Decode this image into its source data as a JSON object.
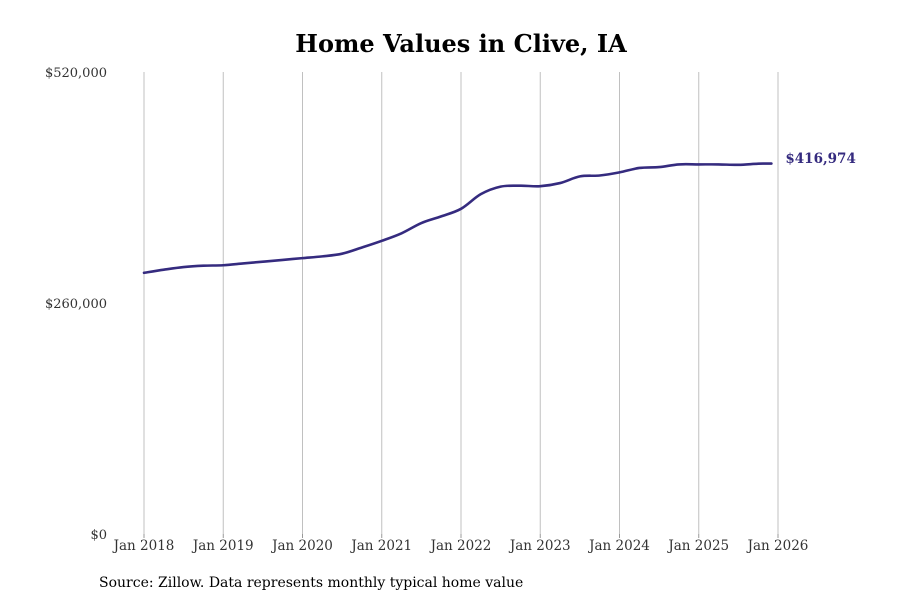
{
  "chart_data": {
    "type": "line",
    "title": "Home Values in Clive, IA",
    "source": "Source: Zillow. Data represents monthly typical home value",
    "ylim": [
      0,
      520000
    ],
    "yticks": [
      {
        "value": 0,
        "label": "$0"
      },
      {
        "value": 260000,
        "label": "$260,000"
      },
      {
        "value": 520000,
        "label": "$520,000"
      }
    ],
    "xlim": [
      "2018-01",
      "2026-01"
    ],
    "xticks": [
      {
        "value": "2018-01",
        "label": "Jan 2018"
      },
      {
        "value": "2019-01",
        "label": "Jan 2019"
      },
      {
        "value": "2020-01",
        "label": "Jan 2020"
      },
      {
        "value": "2021-01",
        "label": "Jan 2021"
      },
      {
        "value": "2022-01",
        "label": "Jan 2022"
      },
      {
        "value": "2023-01",
        "label": "Jan 2023"
      },
      {
        "value": "2024-01",
        "label": "Jan 2024"
      },
      {
        "value": "2025-01",
        "label": "Jan 2025"
      },
      {
        "value": "2026-01",
        "label": "Jan 2026"
      }
    ],
    "grid": "vertical",
    "line_color": "#352b7f",
    "end_label": "$416,974",
    "series": [
      {
        "x": [
          "2018-01",
          "2018-04",
          "2018-07",
          "2018-10",
          "2019-01",
          "2019-04",
          "2019-07",
          "2019-10",
          "2020-01",
          "2020-04",
          "2020-07",
          "2020-10",
          "2021-01",
          "2021-04",
          "2021-07",
          "2021-10",
          "2022-01",
          "2022-04",
          "2022-07",
          "2022-10",
          "2023-01",
          "2023-04",
          "2023-07",
          "2023-10",
          "2024-01",
          "2024-04",
          "2024-07",
          "2024-10",
          "2025-01",
          "2025-04",
          "2025-07",
          "2025-10",
          "2025-12"
        ],
        "y": [
          294000,
          297500,
          300500,
          302000,
          302500,
          304500,
          306500,
          308500,
          310500,
          312500,
          315500,
          322500,
          330000,
          338500,
          350000,
          357500,
          366000,
          382500,
          391000,
          392000,
          391500,
          395000,
          402500,
          403500,
          407000,
          412000,
          413000,
          416000,
          416000,
          416000,
          415500,
          416800,
          416974
        ]
      }
    ]
  }
}
